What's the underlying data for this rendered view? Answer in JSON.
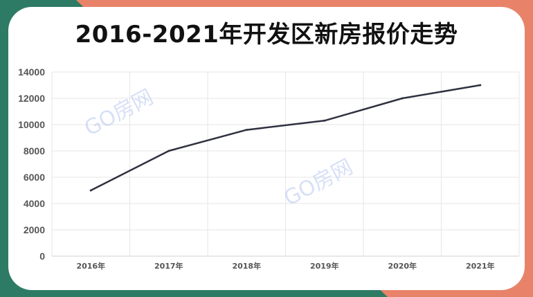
{
  "colors": {
    "background_teal": "#2e7b65",
    "background_coral": "#e8836a",
    "line": "#2f3140",
    "grid": "#e6e6e6",
    "watermark": "#b8c8f0"
  },
  "watermark_text": "GO房网",
  "chart_data": {
    "type": "line",
    "title": "2016-2021年开发区新房报价走势",
    "xlabel": "",
    "ylabel": "",
    "categories": [
      "2016年",
      "2017年",
      "2018年",
      "2019年",
      "2020年",
      "2021年"
    ],
    "series": [
      {
        "values": [
          5000,
          8000,
          9600,
          10300,
          12000,
          13000
        ]
      }
    ],
    "ylim": [
      0,
      14000
    ],
    "yticks": [
      0,
      2000,
      4000,
      6000,
      8000,
      10000,
      12000,
      14000
    ],
    "grid": true,
    "legend": "none"
  }
}
